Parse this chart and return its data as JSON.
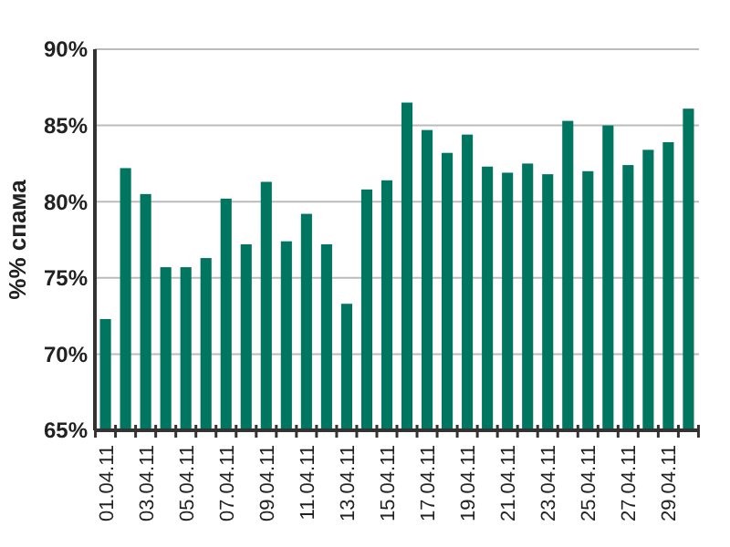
{
  "chart_data": {
    "type": "bar",
    "ylabel": "%% спама",
    "categories": [
      "01.04.11",
      null,
      "03.04.11",
      null,
      "05.04.11",
      null,
      "07.04.11",
      null,
      "09.04.11",
      null,
      "11.04.11",
      null,
      "13.04.11",
      null,
      "15.04.11",
      null,
      "17.04.11",
      null,
      "19.04.11",
      null,
      "21.04.11",
      null,
      "23.04.11",
      null,
      "25.04.11",
      null,
      "27.04.11",
      null,
      "29.04.11",
      null
    ],
    "values": [
      72.3,
      82.2,
      80.5,
      75.7,
      75.7,
      76.3,
      80.2,
      77.2,
      81.3,
      77.4,
      79.2,
      77.2,
      73.3,
      80.8,
      81.4,
      86.5,
      84.7,
      83.2,
      84.4,
      82.3,
      81.9,
      82.5,
      81.8,
      85.3,
      82.0,
      85.0,
      82.4,
      83.4,
      83.9,
      86.1
    ],
    "color": "#007560",
    "ylim": [
      65,
      90
    ],
    "yticks": [
      {
        "value": 65,
        "label": "65%"
      },
      {
        "value": 70,
        "label": "70%"
      },
      {
        "value": 75,
        "label": "75%"
      },
      {
        "value": 80,
        "label": "80%"
      },
      {
        "value": 85,
        "label": "85%"
      },
      {
        "value": 90,
        "label": "90%"
      }
    ],
    "grid": "y"
  }
}
